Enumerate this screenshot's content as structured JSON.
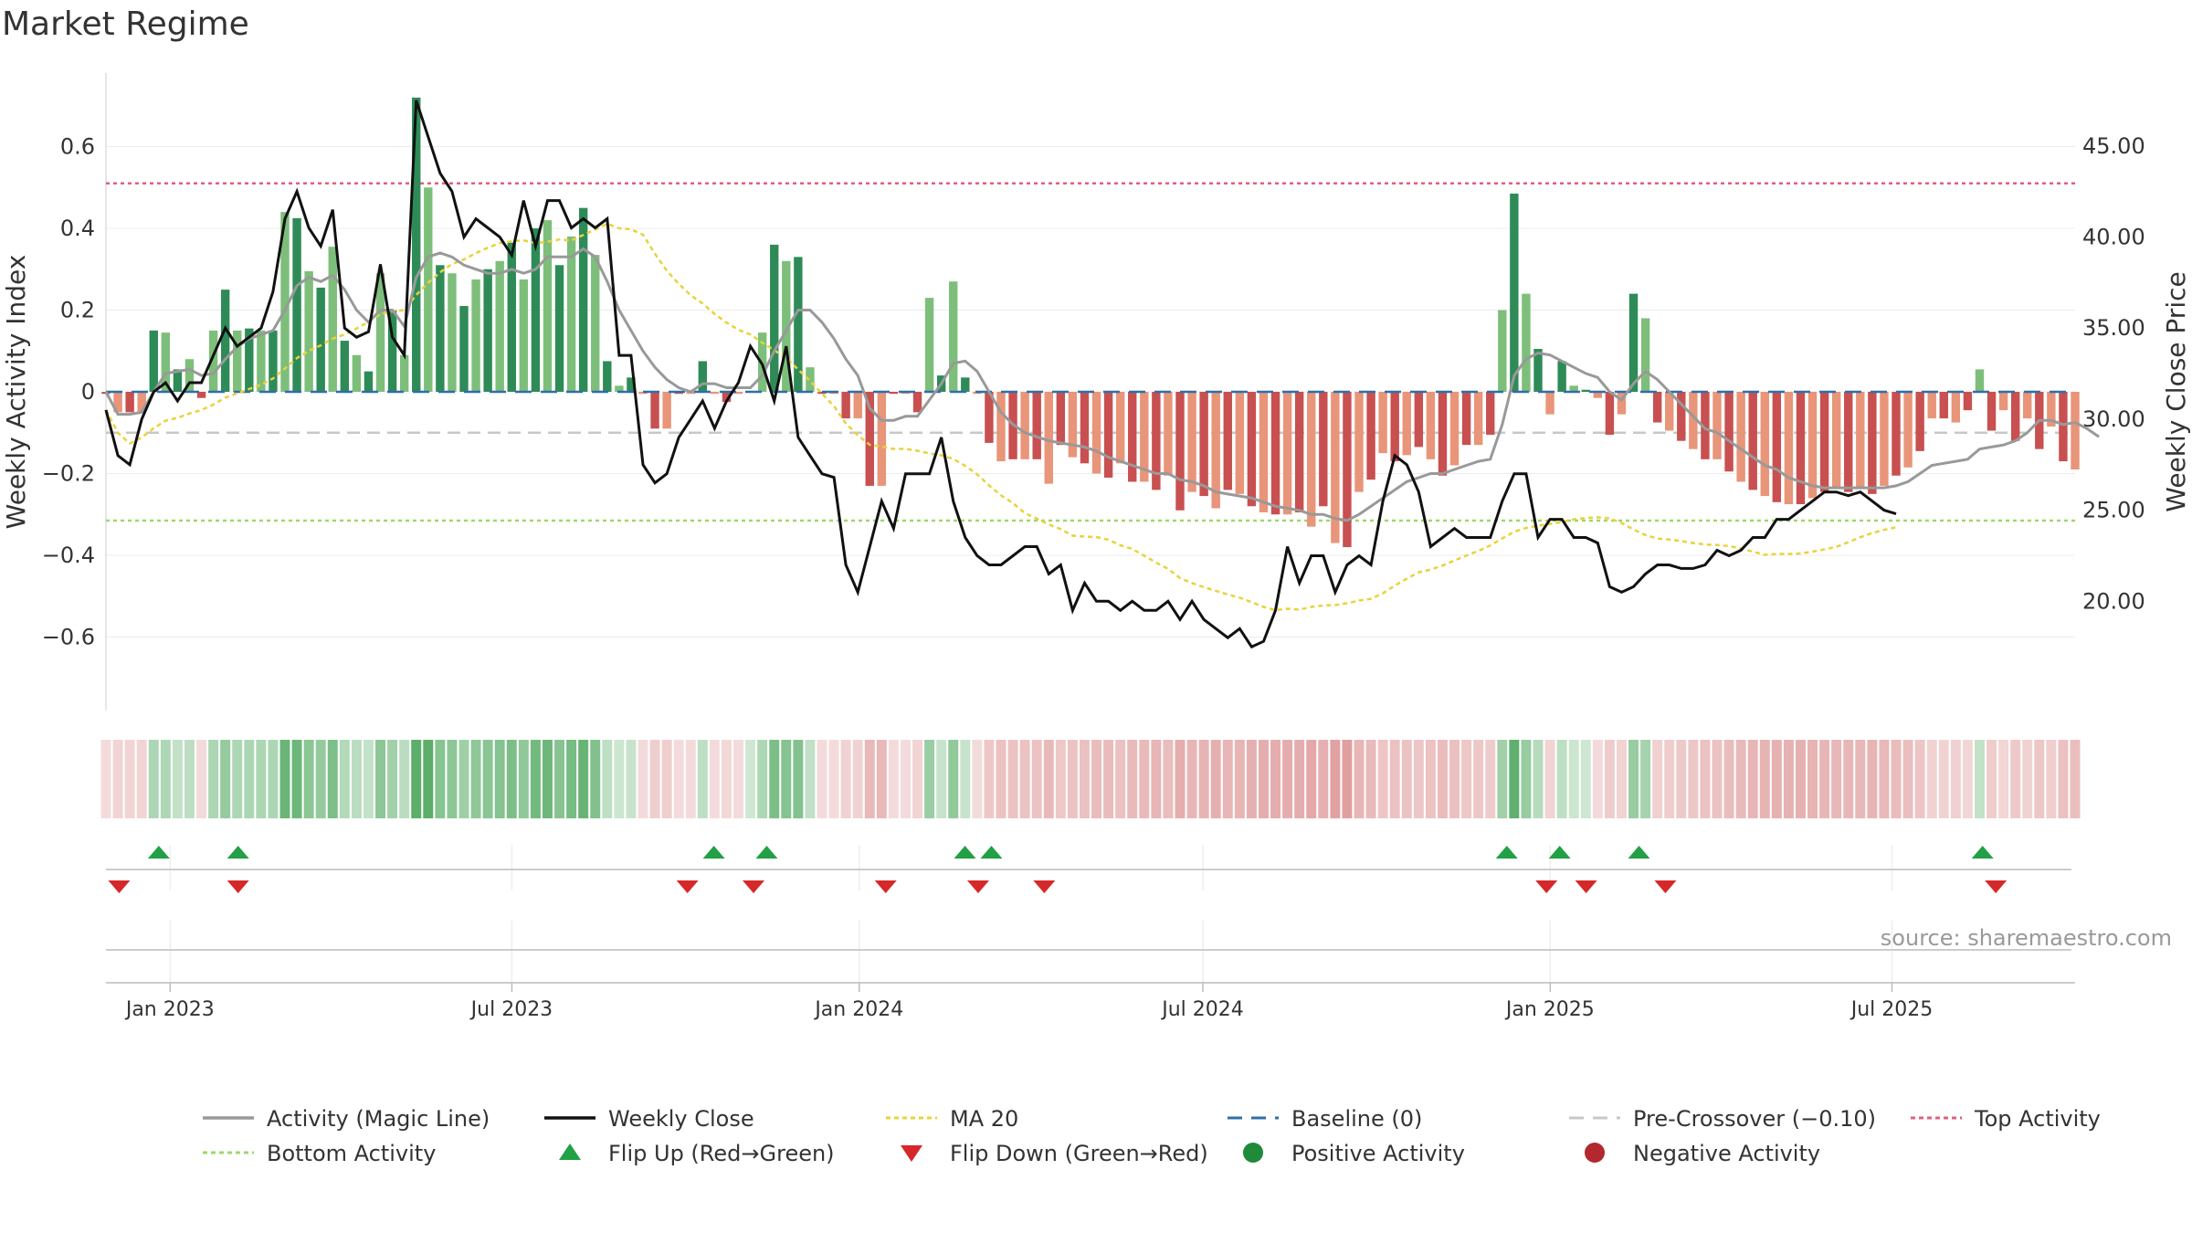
{
  "title": "Market Regime",
  "source": "source: sharemaestro.com",
  "chart_data": {
    "type": "bar",
    "title": "Market Regime",
    "ylabel": "Weekly Activity Index",
    "y2label": "Weekly Close Price",
    "ylim": [
      -0.78,
      0.78
    ],
    "y2lim": [
      14.0,
      49.0
    ],
    "y_ticks": [
      "0.6",
      "0.4",
      "0.2",
      "0",
      "−0.2",
      "−0.4",
      "−0.6"
    ],
    "y_tick_values": [
      0.6,
      0.4,
      0.2,
      0,
      -0.2,
      -0.4,
      -0.6
    ],
    "y2_ticks": [
      "45.00",
      "40.00",
      "35.00",
      "30.00",
      "25.00",
      "20.00"
    ],
    "y2_tick_values": [
      45,
      40,
      35,
      30,
      25,
      20
    ],
    "x_range": [
      "2022-11-28",
      "2025-10-06"
    ],
    "x_ticks": [
      "Jan 2023",
      "Jul 2023",
      "Jan 2024",
      "Jul 2024",
      "Jan 2025",
      "Jul 2025"
    ],
    "x_tick_dates": [
      "2023-01-01",
      "2023-07-01",
      "2024-01-01",
      "2024-07-01",
      "2025-01-01",
      "2025-07-01"
    ],
    "reference_lines": {
      "baseline": 0,
      "pre_crossover": -0.1,
      "top_activity": 0.51,
      "bottom_activity": -0.315
    },
    "activity": [
      -0.005,
      -0.05,
      -0.05,
      -0.05,
      0.15,
      0.145,
      0.055,
      0.08,
      -0.015,
      0.15,
      0.25,
      0.15,
      0.155,
      0.15,
      0.15,
      0.44,
      0.425,
      0.295,
      0.255,
      0.355,
      0.125,
      0.09,
      0.05,
      0.29,
      0.2,
      0.09,
      0.72,
      0.5,
      0.31,
      0.29,
      0.21,
      0.275,
      0.3,
      0.32,
      0.365,
      0.275,
      0.4,
      0.42,
      0.31,
      0.38,
      0.45,
      0.335,
      0.075,
      0.015,
      0.035,
      -0.005,
      -0.09,
      -0.09,
      -0.005,
      -0.005,
      0.075,
      -0.005,
      -0.025,
      -0.005,
      0.0,
      0.145,
      0.36,
      0.32,
      0.33,
      0.06,
      -0.005,
      -0.005,
      -0.065,
      -0.065,
      -0.23,
      -0.23,
      -0.005,
      -0.005,
      -0.05,
      0.23,
      0.04,
      0.27,
      0.035,
      -0.005,
      -0.125,
      -0.17,
      -0.165,
      -0.165,
      -0.165,
      -0.225,
      -0.13,
      -0.16,
      -0.175,
      -0.2,
      -0.21,
      -0.175,
      -0.22,
      -0.22,
      -0.24,
      -0.205,
      -0.29,
      -0.245,
      -0.255,
      -0.285,
      -0.24,
      -0.25,
      -0.28,
      -0.295,
      -0.3,
      -0.3,
      -0.295,
      -0.33,
      -0.28,
      -0.37,
      -0.38,
      -0.245,
      -0.215,
      -0.15,
      -0.17,
      -0.155,
      -0.135,
      -0.165,
      -0.205,
      -0.18,
      -0.13,
      -0.13,
      -0.105,
      0.2,
      0.485,
      0.24,
      0.105,
      -0.055,
      0.075,
      0.015,
      0.005,
      -0.015,
      -0.105,
      -0.055,
      0.24,
      0.18,
      -0.075,
      -0.095,
      -0.12,
      -0.14,
      -0.165,
      -0.165,
      -0.195,
      -0.22,
      -0.24,
      -0.255,
      -0.27,
      -0.275,
      -0.275,
      -0.26,
      -0.245,
      -0.235,
      -0.245,
      -0.235,
      -0.25,
      -0.23,
      -0.205,
      -0.185,
      -0.145,
      -0.065,
      -0.065,
      -0.075,
      -0.045,
      0.055,
      -0.095,
      -0.045,
      -0.12,
      -0.065,
      -0.14,
      -0.085,
      -0.17,
      -0.19
    ],
    "magic_line": [
      0.0,
      -0.055,
      -0.055,
      -0.05,
      0.0,
      0.045,
      0.05,
      0.055,
      0.04,
      0.045,
      0.08,
      0.11,
      0.13,
      0.14,
      0.15,
      0.2,
      0.26,
      0.28,
      0.27,
      0.285,
      0.25,
      0.2,
      0.17,
      0.2,
      0.2,
      0.16,
      0.28,
      0.33,
      0.34,
      0.33,
      0.31,
      0.3,
      0.29,
      0.29,
      0.3,
      0.29,
      0.3,
      0.33,
      0.33,
      0.33,
      0.35,
      0.33,
      0.27,
      0.2,
      0.15,
      0.1,
      0.06,
      0.03,
      0.01,
      0.0,
      0.02,
      0.02,
      0.01,
      0.01,
      0.01,
      0.04,
      0.1,
      0.15,
      0.2,
      0.2,
      0.17,
      0.13,
      0.08,
      0.04,
      -0.04,
      -0.07,
      -0.07,
      -0.06,
      -0.06,
      -0.02,
      0.02,
      0.07,
      0.075,
      0.05,
      0.0,
      -0.05,
      -0.08,
      -0.1,
      -0.11,
      -0.12,
      -0.125,
      -0.13,
      -0.135,
      -0.145,
      -0.16,
      -0.17,
      -0.18,
      -0.19,
      -0.2,
      -0.2,
      -0.215,
      -0.22,
      -0.23,
      -0.245,
      -0.25,
      -0.255,
      -0.26,
      -0.27,
      -0.28,
      -0.285,
      -0.29,
      -0.3,
      -0.3,
      -0.31,
      -0.315,
      -0.3,
      -0.28,
      -0.26,
      -0.24,
      -0.22,
      -0.21,
      -0.2,
      -0.2,
      -0.19,
      -0.18,
      -0.17,
      -0.165,
      -0.08,
      0.04,
      0.08,
      0.095,
      0.09,
      0.075,
      0.06,
      0.045,
      0.035,
      0.0,
      -0.02,
      0.02,
      0.05,
      0.03,
      0.0,
      -0.03,
      -0.06,
      -0.09,
      -0.1,
      -0.12,
      -0.14,
      -0.16,
      -0.18,
      -0.19,
      -0.21,
      -0.22,
      -0.23,
      -0.235,
      -0.235,
      -0.235,
      -0.235,
      -0.235,
      -0.235,
      -0.23,
      -0.22,
      -0.2,
      -0.18,
      -0.175,
      -0.17,
      -0.165,
      -0.14,
      -0.135,
      -0.13,
      -0.12,
      -0.1,
      -0.07,
      -0.07,
      -0.08,
      -0.075,
      -0.09,
      -0.11
    ],
    "weekly_close": [
      30.5,
      28.0,
      27.5,
      30.0,
      31.5,
      32.0,
      31.0,
      32.0,
      32.0,
      33.5,
      35.0,
      34.0,
      34.5,
      35.0,
      37.0,
      41.0,
      42.5,
      40.5,
      39.5,
      41.5,
      35.0,
      34.5,
      34.8,
      38.5,
      34.5,
      33.5,
      47.5,
      45.5,
      43.5,
      42.5,
      40.0,
      41.0,
      40.5,
      40.0,
      39.0,
      42.0,
      39.5,
      42.0,
      42.0,
      40.5,
      41.0,
      40.5,
      41.0,
      33.5,
      33.5,
      27.5,
      26.5,
      27.0,
      29.0,
      30.0,
      31.0,
      29.5,
      31.0,
      32.0,
      34.0,
      33.0,
      31.0,
      34.0,
      29.0,
      28.0,
      27.0,
      26.8,
      22.0,
      20.5,
      23.0,
      25.5,
      24.0,
      27.0,
      27.0,
      27.0,
      29.0,
      25.5,
      23.5,
      22.5,
      22.0,
      22.0,
      22.5,
      23.0,
      23.0,
      21.5,
      22.0,
      19.5,
      21.0,
      20.0,
      20.0,
      19.5,
      20.0,
      19.5,
      19.5,
      20.0,
      19.0,
      20.0,
      19.0,
      18.5,
      18.0,
      18.5,
      17.5,
      17.8,
      19.5,
      23.0,
      21.0,
      22.5,
      22.5,
      20.5,
      22.0,
      22.5,
      22.0,
      25.5,
      28.0,
      27.5,
      26.0,
      23.0,
      23.5,
      24.0,
      23.5,
      23.5,
      23.5,
      25.5,
      27.0,
      27.0,
      23.5,
      24.5,
      24.5,
      23.5,
      23.5,
      23.2,
      20.8,
      20.5,
      20.8,
      21.5,
      22.0,
      22.0,
      21.8,
      21.8,
      22.0,
      22.8,
      22.5,
      22.8,
      23.5,
      23.5,
      24.5,
      24.5,
      25.0,
      25.5,
      26.0,
      26.0,
      25.8,
      26.0,
      25.5,
      25.0,
      24.8
    ]
  },
  "legend": {
    "items": [
      {
        "label": "Activity (Magic Line)",
        "color": "#999999",
        "marker": "line"
      },
      {
        "label": "Weekly Close",
        "color": "#111111",
        "marker": "line"
      },
      {
        "label": "MA 20",
        "color": "#e8d33a",
        "marker": "dotted-line"
      },
      {
        "label": "Baseline (0)",
        "color": "#2e6fa8",
        "marker": "dashed-line"
      },
      {
        "label": "Pre-Crossover (−0.10)",
        "color": "#c8c8c8",
        "marker": "dashed-line"
      },
      {
        "label": "Top Activity",
        "color": "#e0607e",
        "marker": "dotted-line"
      },
      {
        "label": "Bottom Activity",
        "color": "#9ed86b",
        "marker": "dotted-line"
      },
      {
        "label": "Flip Up (Red→Green)",
        "color": "#22a045",
        "marker": "triangle-up"
      },
      {
        "label": "Flip Down (Green→Red)",
        "color": "#d62828",
        "marker": "triangle-down"
      },
      {
        "label": "Positive Activity",
        "color": "#1e8a3a",
        "marker": "circle"
      },
      {
        "label": "Negative Activity",
        "color": "#b2282e",
        "marker": "circle"
      }
    ]
  },
  "flips_up": [
    "2022-12-26",
    "2023-02-06",
    "2023-10-16",
    "2023-11-13",
    "2024-02-26",
    "2024-03-11",
    "2024-12-09",
    "2025-01-06",
    "2025-02-17",
    "2025-08-18"
  ],
  "flips_down": [
    "2022-12-05",
    "2023-02-06",
    "2023-10-02",
    "2023-11-06",
    "2024-01-15",
    "2024-03-04",
    "2024-04-08",
    "2024-12-30",
    "2025-01-20",
    "2025-03-03",
    "2025-08-25"
  ],
  "colors": {
    "strong_green": "#2e8b57",
    "light_green": "#7dbf7a",
    "strong_red": "#c85050",
    "light_red": "#e8957a",
    "close_line": "#111111",
    "magic_line": "#999999",
    "ma_line": "#e8d33a",
    "top_line": "#e0607e",
    "bottom_line": "#9ed86b",
    "baseline": "#2e6fa8",
    "pre_crossover": "#c8c8c8"
  }
}
